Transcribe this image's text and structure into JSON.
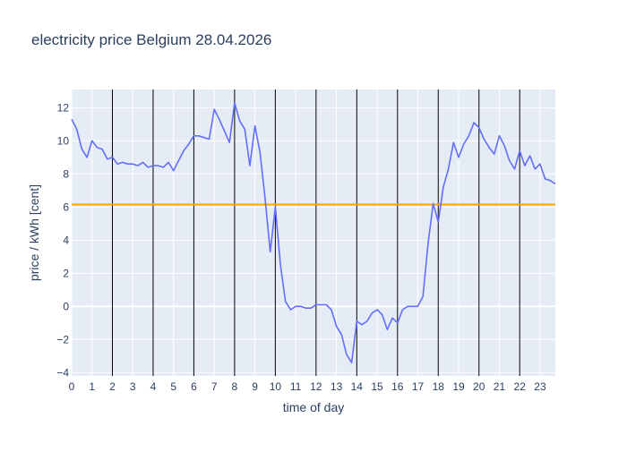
{
  "chart_data": {
    "type": "line",
    "title": "electricity price Belgium 28.04.2026",
    "xlabel": "time of day",
    "ylabel": "price / kWh [cent]",
    "xlim": [
      0,
      23.75
    ],
    "ylim": [
      -4.2,
      13.1
    ],
    "xticks": [
      0,
      1,
      2,
      3,
      4,
      5,
      6,
      7,
      8,
      9,
      10,
      11,
      12,
      13,
      14,
      15,
      16,
      17,
      18,
      19,
      20,
      21,
      22,
      23
    ],
    "yticks": [
      -4,
      -2,
      0,
      2,
      4,
      6,
      8,
      10,
      12
    ],
    "grid": true,
    "colors": {
      "plot_bg": "#e5ecf6",
      "grid": "#ffffff",
      "series": "#636efa",
      "reference_line": "#ffa500",
      "vertical_markers": "#000000",
      "text": "#2a3f5f"
    },
    "reference_line_y": 6.15,
    "vertical_markers_x": [
      2,
      4,
      6,
      8,
      10,
      12,
      14,
      16,
      18,
      20,
      22
    ],
    "series": [
      {
        "x": [
          0,
          0.25,
          0.5,
          0.75,
          1,
          1.25,
          1.5,
          1.75,
          2,
          2.25,
          2.5,
          2.75,
          3,
          3.25,
          3.5,
          3.75,
          4,
          4.25,
          4.5,
          4.75,
          5,
          5.25,
          5.5,
          5.75,
          6,
          6.25,
          6.5,
          6.75,
          7,
          7.25,
          7.5,
          7.75,
          8,
          8.25,
          8.5,
          8.75,
          9,
          9.25,
          9.5,
          9.75,
          10,
          10.25,
          10.5,
          10.75,
          11,
          11.25,
          11.5,
          11.75,
          12,
          12.25,
          12.5,
          12.75,
          13,
          13.25,
          13.5,
          13.75,
          14,
          14.25,
          14.5,
          14.75,
          15,
          15.25,
          15.5,
          15.75,
          16,
          16.25,
          16.5,
          16.75,
          17,
          17.25,
          17.5,
          17.75,
          18,
          18.25,
          18.5,
          18.75,
          19,
          19.25,
          19.5,
          19.75,
          20,
          20.25,
          20.5,
          20.75,
          21,
          21.25,
          21.5,
          21.75,
          22,
          22.25,
          22.5,
          22.75,
          23,
          23.25,
          23.5,
          23.75
        ],
        "y": [
          11.3,
          10.7,
          9.5,
          9.0,
          10.0,
          9.6,
          9.5,
          8.9,
          9.0,
          8.6,
          8.7,
          8.6,
          8.6,
          8.5,
          8.7,
          8.4,
          8.5,
          8.5,
          8.4,
          8.7,
          8.2,
          8.8,
          9.4,
          9.8,
          10.3,
          10.3,
          10.2,
          10.1,
          11.9,
          11.3,
          10.6,
          9.9,
          12.3,
          11.2,
          10.7,
          8.5,
          10.9,
          9.3,
          6.5,
          3.3,
          6.0,
          2.5,
          0.3,
          -0.2,
          0.0,
          0.0,
          -0.1,
          -0.1,
          0.1,
          0.1,
          0.1,
          -0.2,
          -1.2,
          -1.7,
          -2.9,
          -3.4,
          -0.9,
          -1.1,
          -0.9,
          -0.4,
          -0.2,
          -0.5,
          -1.4,
          -0.7,
          -1.0,
          -0.2,
          0.0,
          0.0,
          0.0,
          0.6,
          3.8,
          6.2,
          5.1,
          7.2,
          8.3,
          9.9,
          9.0,
          9.8,
          10.3,
          11.1,
          10.8,
          10.1,
          9.6,
          9.2,
          10.3,
          9.7,
          8.8,
          8.3,
          9.4,
          8.5,
          9.1,
          8.3,
          8.6,
          7.7,
          7.6,
          7.4
        ]
      }
    ]
  }
}
